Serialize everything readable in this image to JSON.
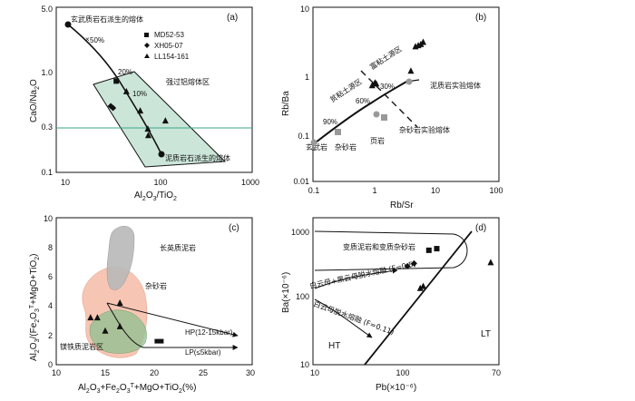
{
  "chart_data": [
    {
      "panel": "(a)",
      "type": "scatter",
      "xscale": "log",
      "yscale": "log",
      "xlim": [
        10,
        1000
      ],
      "ylim": [
        0.1,
        5
      ],
      "xticks": [
        "10",
        "100",
        "1000"
      ],
      "yticks": [
        "0.1",
        "0.3",
        "1.0",
        "5.0"
      ],
      "xlabel": "Al2O3/TiO2",
      "ylabel": "CaO/Na2O",
      "legend": [
        "MD52-53",
        "XH05-07",
        "LL154-161"
      ],
      "labels": {
        "basalt_melt": "玄武质岩石派生的熔体",
        "strong_peral": "强过铝熔体区",
        "pelite_melt": "泥质岩石派生的熔体"
      },
      "mix_labels": [
        "50%",
        "20%",
        "10%"
      ],
      "hline": 0.3,
      "series": [
        {
          "name": "MD52-53",
          "values": [
            [
              41,
              0.87
            ]
          ]
        },
        {
          "name": "XH05-07",
          "values": [
            [
              36,
              0.48
            ],
            [
              38,
              0.46
            ]
          ]
        },
        {
          "name": "LL154-161",
          "values": [
            [
              52,
              0.68
            ],
            [
              72,
              0.43
            ],
            [
              86,
              0.28
            ],
            [
              87,
              0.24
            ],
            [
              130,
              0.34
            ]
          ]
        }
      ],
      "mixing_curve": [
        [
          11,
          3.5
        ],
        [
          16,
          2.5
        ],
        [
          26,
          1.5
        ],
        [
          41,
          0.87
        ],
        [
          55,
          0.62
        ],
        [
          70,
          0.45
        ],
        [
          85,
          0.3
        ],
        [
          100,
          0.18
        ]
      ],
      "polygon": [
        [
          32,
          0.85
        ],
        [
          78,
          1.3
        ],
        [
          380,
          0.16
        ],
        [
          155,
          0.11
        ]
      ]
    },
    {
      "panel": "(b)",
      "type": "scatter",
      "xscale": "log",
      "yscale": "log",
      "xlim": [
        0.1,
        100
      ],
      "ylim": [
        0.01,
        10
      ],
      "xticks": [
        "0.1",
        "1",
        "10",
        "100"
      ],
      "yticks": [
        "0.01",
        "0.1",
        "1",
        "10"
      ],
      "xlabel": "Rb/Sr",
      "ylabel": "Rb/Ba",
      "labels": {
        "clay_poor": "贫粘土源区",
        "clay_rich": "富粘土源区",
        "pelite_exp": "泥质岩实验熔体",
        "basalt": "玄武岩",
        "greywacke": "杂砂岩",
        "shale": "页岩",
        "greywacke_exp": "杂砂岩实验熔体"
      },
      "mix_labels": [
        "90%",
        "60%",
        "30%"
      ],
      "series": [
        {
          "name": "samples",
          "values": [
            [
              0.9,
              0.45
            ],
            [
              1.0,
              0.5
            ],
            [
              1.05,
              0.48
            ],
            [
              3.8,
              0.8
            ],
            [
              4.5,
              2.1
            ],
            [
              5.0,
              2.2
            ],
            [
              5.5,
              2.3
            ],
            [
              6.0,
              2.5
            ]
          ]
        }
      ],
      "mixing_curve": [
        [
          0.1,
          0.07
        ],
        [
          0.4,
          0.2
        ],
        [
          0.9,
          0.42
        ],
        [
          2,
          0.9
        ],
        [
          5,
          1.8
        ]
      ]
    },
    {
      "panel": "(c)",
      "type": "scatter",
      "xlim": [
        10,
        30
      ],
      "ylim": [
        0,
        10
      ],
      "xticks": [
        "10",
        "15",
        "20",
        "25",
        "30"
      ],
      "yticks": [
        "0",
        "2",
        "4",
        "6",
        "8",
        "10"
      ],
      "xlabel": "Al2O3+Fe2O3T+MgO+TiO2(%)",
      "ylabel": "Al2O3/(Fe2O3T+MgO+TiO2)",
      "labels": {
        "felsic_pelite": "长英质泥岩",
        "greywacke": "杂砂岩",
        "mafic_pelite": "镁铁质泥岩区",
        "hp": "HP(12-15kbar)",
        "lp": "LP(≤5kbar)"
      },
      "series": [
        {
          "name": "samples",
          "values": [
            [
              13.5,
              3.2
            ],
            [
              14.2,
              3.2
            ],
            [
              16.5,
              2.6
            ],
            [
              20.5,
              1.6
            ],
            [
              16.5,
              4.2
            ],
            [
              15,
              2.3
            ]
          ]
        }
      ]
    },
    {
      "panel": "(d)",
      "type": "scatter",
      "xscale": "log",
      "yscale": "log",
      "xlim": [
        10,
        70
      ],
      "ylim": [
        10,
        1000
      ],
      "xticks": [
        "10",
        "100",
        "70"
      ],
      "yticks": [
        "10",
        "100",
        "1000"
      ],
      "xlabel": "Pb(×10⁻⁶)",
      "ylabel": "Ba(×10⁻⁶)",
      "labels": {
        "region": "变质泥岩和变质杂砂岩",
        "hi_sm": "白云母+黑云母脱水熔融 (F=0.5)",
        "lo_sm": "白云母脱水熔融 (F=0.11)",
        "ht": "HT",
        "lt": "LT"
      },
      "series": [
        {
          "name": "samples",
          "values": [
            [
              27,
              300
            ],
            [
              29,
              330
            ],
            [
              31,
              140
            ],
            [
              32,
              150
            ],
            [
              34,
              520
            ],
            [
              37,
              550
            ],
            [
              66,
              340
            ]
          ]
        }
      ]
    }
  ]
}
